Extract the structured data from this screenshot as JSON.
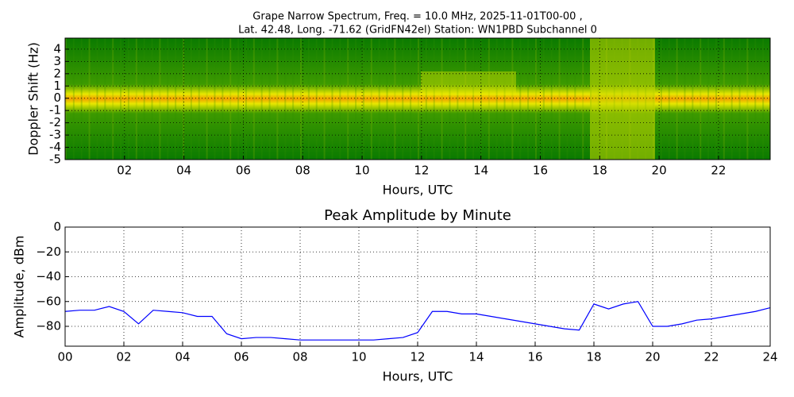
{
  "chart_data": [
    {
      "type": "spectrogram",
      "title": [
        "Grape Narrow Spectrum, Freq. = 10.0 MHz, 2025-11-01T00-00 ,",
        "Lat.  42.48, Long. -71.62 (GridFN42el) Station: WN1PBD Subchannel 0"
      ],
      "xlabel": "Hours, UTC",
      "ylabel": "Doppler Shift (Hz)",
      "xlim": [
        0,
        23.74
      ],
      "ylim": [
        -5,
        4.9
      ],
      "xticks": [
        {
          "value": 2,
          "label": "02"
        },
        {
          "value": 4,
          "label": "04"
        },
        {
          "value": 6,
          "label": "06"
        },
        {
          "value": 8,
          "label": "08"
        },
        10,
        12,
        14,
        16,
        18,
        20,
        22
      ],
      "yticks": [
        4,
        3,
        2,
        1,
        0,
        {
          "value": -1,
          "label": "-1"
        },
        {
          "value": -2,
          "label": "-2"
        },
        {
          "value": -3,
          "label": "-3"
        },
        {
          "value": -4,
          "label": "-4"
        },
        {
          "value": -5,
          "label": "-5"
        }
      ],
      "grid": true
    },
    {
      "type": "line",
      "title": "Peak Amplitude by Minute",
      "xlabel": "Hours, UTC",
      "ylabel": "Amplitude, dBm",
      "xlim": [
        0,
        24
      ],
      "ylim": [
        -96,
        0
      ],
      "xticks": [
        {
          "value": 0,
          "label": "00"
        },
        {
          "value": 2,
          "label": "02"
        },
        {
          "value": 4,
          "label": "04"
        },
        {
          "value": 6,
          "label": "06"
        },
        {
          "value": 8,
          "label": "08"
        },
        10,
        12,
        14,
        16,
        18,
        20,
        22,
        24
      ],
      "yticks": [
        0,
        {
          "value": -20,
          "label": "−20"
        },
        {
          "value": -40,
          "label": "−40"
        },
        {
          "value": -60,
          "label": "−60"
        },
        {
          "value": -80,
          "label": "−80"
        }
      ],
      "grid": true,
      "color": "#0000ff",
      "x": [
        0,
        0.5,
        1,
        1.5,
        2,
        2.5,
        3,
        3.5,
        4,
        4.5,
        5,
        5.5,
        6,
        6.5,
        7,
        7.5,
        8,
        8.5,
        9,
        9.5,
        10,
        10.5,
        11,
        11.5,
        12,
        12.5,
        13,
        13.5,
        14,
        14.5,
        15,
        15.5,
        16,
        16.5,
        17,
        17.5,
        18,
        18.5,
        19,
        19.5,
        20,
        20.5,
        21,
        21.5,
        22,
        22.5,
        23,
        23.5,
        24
      ],
      "values": [
        -68,
        -67,
        -67,
        -64,
        -68,
        -78,
        -67,
        -68,
        -69,
        -72,
        -72,
        -86,
        -90,
        -89,
        -89,
        -90,
        -91,
        -91,
        -91,
        -91,
        -91,
        -91,
        -90,
        -89,
        -85,
        -68,
        -68,
        -70,
        -70,
        -72,
        -74,
        -76,
        -78,
        -80,
        -82,
        -83,
        -62,
        -66,
        -62,
        -60,
        -80,
        -80,
        -78,
        -75,
        -74,
        -72,
        -70,
        -68,
        -65
      ]
    }
  ]
}
